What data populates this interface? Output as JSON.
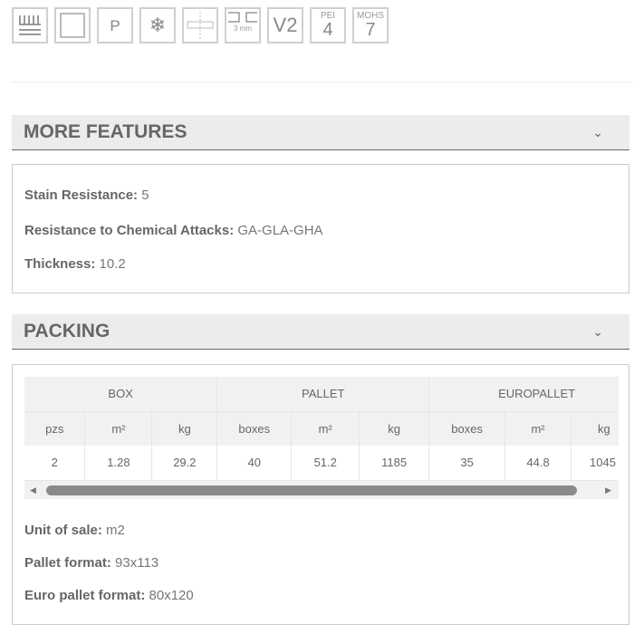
{
  "icons": [
    {
      "name": "underfloor-heating-icon"
    },
    {
      "name": "square-format-icon"
    },
    {
      "name": "p-icon",
      "text": "P"
    },
    {
      "name": "frost-resistant-icon",
      "text": "❄"
    },
    {
      "name": "joint-icon"
    },
    {
      "name": "joint-width-icon",
      "text": "3 mm"
    },
    {
      "name": "shade-variation-icon",
      "text": "V2"
    },
    {
      "name": "pei-icon",
      "label": "PEI",
      "value": "4"
    },
    {
      "name": "mohs-icon",
      "label": "MOHS",
      "value": "7"
    }
  ],
  "more_features": {
    "title": "MORE FEATURES",
    "items": [
      {
        "label": "Stain Resistance:",
        "value": "5"
      },
      {
        "label": "Resistance to Chemical Attacks:",
        "value": "GA-GLA-GHA"
      },
      {
        "label": "Thickness:",
        "value": "10.2"
      }
    ]
  },
  "packing": {
    "title": "PACKING",
    "groups": [
      "BOX",
      "PALLET",
      "EUROPALLET"
    ],
    "columns": [
      "pzs",
      "m²",
      "kg",
      "boxes",
      "m²",
      "kg",
      "boxes",
      "m²",
      "kg"
    ],
    "row": [
      "2",
      "1.28",
      "29.2",
      "40",
      "51.2",
      "1185",
      "35",
      "44.8",
      "1045"
    ],
    "items": [
      {
        "label": "Unit of sale:",
        "value": "m2"
      },
      {
        "label": "Pallet format:",
        "value": "93x113"
      },
      {
        "label": "Euro pallet format:",
        "value": "80x120"
      }
    ]
  }
}
